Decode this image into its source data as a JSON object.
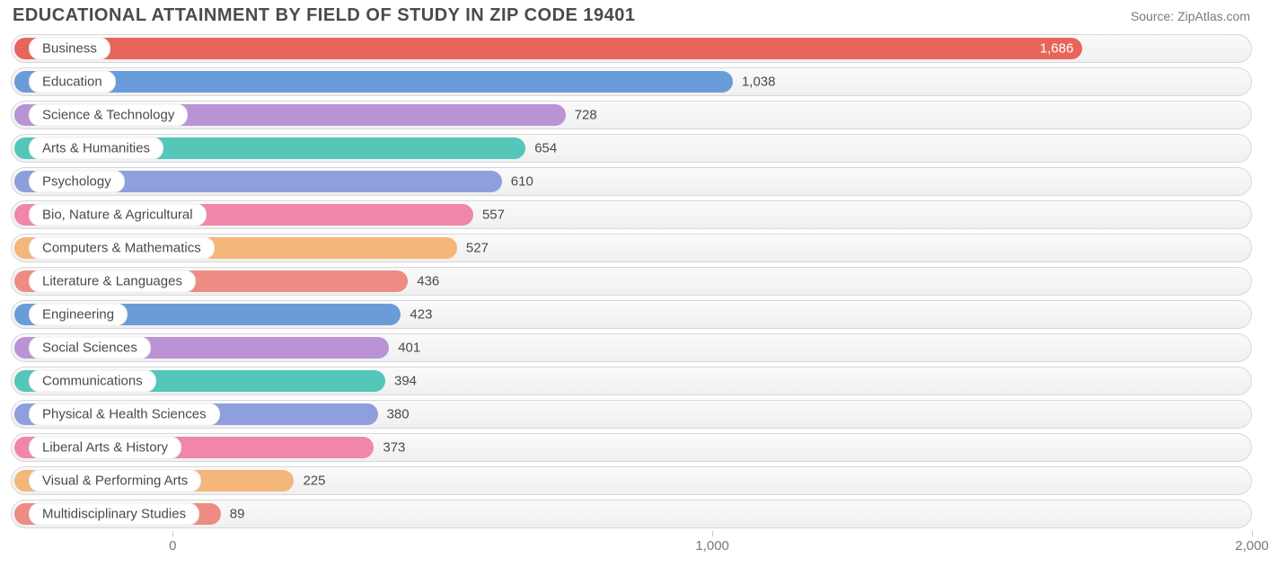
{
  "title": "EDUCATIONAL ATTAINMENT BY FIELD OF STUDY IN ZIP CODE 19401",
  "source": "Source: ZipAtlas.com",
  "chart": {
    "type": "bar-horizontal",
    "background_color": "#ffffff",
    "track_border_color": "#d8d8d8",
    "track_bg_top": "#fafafa",
    "track_bg_bottom": "#f0f0f0",
    "label_pill_bg": "#ffffff",
    "text_color": "#4a4a4a",
    "axis_text_color": "#7a7a7a",
    "title_fontsize": 20,
    "label_fontsize": 15,
    "value_fontsize": 15,
    "axis_fontsize": 15,
    "bar_radius": 12,
    "track_radius": 16,
    "xlim": [
      -300,
      2000
    ],
    "xticks": [
      {
        "value": 0,
        "label": "0"
      },
      {
        "value": 1000,
        "label": "1,000"
      },
      {
        "value": 2000,
        "label": "2,000"
      }
    ],
    "value_label_inside_threshold": 1500,
    "rows": [
      {
        "label": "Business",
        "value": 1686,
        "display": "1,686",
        "color": "#e8655b"
      },
      {
        "label": "Education",
        "value": 1038,
        "display": "1,038",
        "color": "#6a9cd9"
      },
      {
        "label": "Science & Technology",
        "value": 728,
        "display": "728",
        "color": "#ba93d5"
      },
      {
        "label": "Arts & Humanities",
        "value": 654,
        "display": "654",
        "color": "#54c6ba"
      },
      {
        "label": "Psychology",
        "value": 610,
        "display": "610",
        "color": "#8f9edc"
      },
      {
        "label": "Bio, Nature & Agricultural",
        "value": 557,
        "display": "557",
        "color": "#f087a8"
      },
      {
        "label": "Computers & Mathematics",
        "value": 527,
        "display": "527",
        "color": "#f4b679"
      },
      {
        "label": "Literature & Languages",
        "value": 436,
        "display": "436",
        "color": "#ee8b83"
      },
      {
        "label": "Engineering",
        "value": 423,
        "display": "423",
        "color": "#6a9cd9"
      },
      {
        "label": "Social Sciences",
        "value": 401,
        "display": "401",
        "color": "#ba93d5"
      },
      {
        "label": "Communications",
        "value": 394,
        "display": "394",
        "color": "#54c6ba"
      },
      {
        "label": "Physical & Health Sciences",
        "value": 380,
        "display": "380",
        "color": "#8f9edc"
      },
      {
        "label": "Liberal Arts & History",
        "value": 373,
        "display": "373",
        "color": "#f087a8"
      },
      {
        "label": "Visual & Performing Arts",
        "value": 225,
        "display": "225",
        "color": "#f4b679"
      },
      {
        "label": "Multidisciplinary Studies",
        "value": 89,
        "display": "89",
        "color": "#ee8b83"
      }
    ]
  }
}
